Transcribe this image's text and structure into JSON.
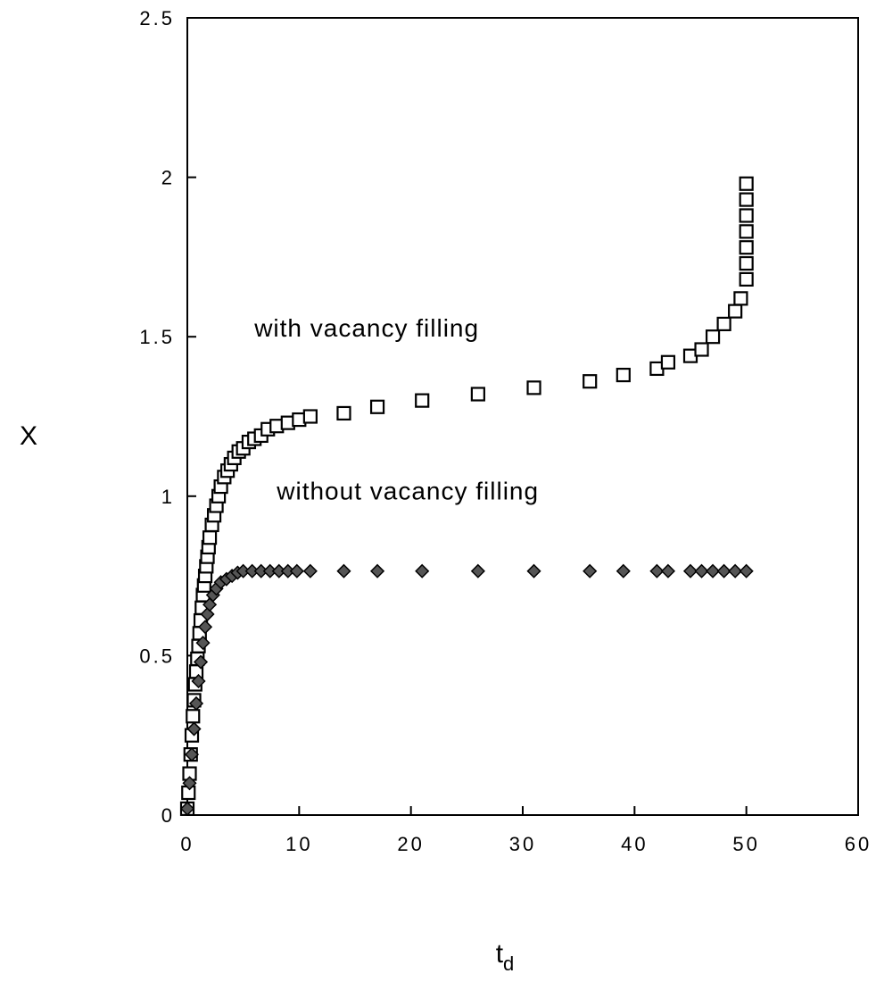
{
  "chart_data": {
    "type": "scatter",
    "xlabel": "t",
    "xlabel_sub": "d",
    "ylabel": "X",
    "xlim": [
      0,
      60
    ],
    "ylim": [
      0,
      2.5
    ],
    "xticks": [
      0,
      10,
      20,
      30,
      40,
      50,
      60
    ],
    "xtick_labels": [
      "0",
      "10",
      "20",
      "30",
      "40",
      "50",
      "60"
    ],
    "yticks": [
      0,
      0.5,
      1,
      1.5,
      2,
      2.5
    ],
    "ytick_labels": [
      "0",
      "0.5",
      "1",
      "1.5",
      "2",
      "2.5"
    ],
    "grid": false,
    "annotations": [
      {
        "text": "with vacancy filling",
        "x": 6,
        "y": 1.5
      },
      {
        "text": "without vacancy filling",
        "x": 8,
        "y": 0.99
      }
    ],
    "series": [
      {
        "marker": "open-square",
        "x": [
          0.0,
          0.1,
          0.2,
          0.3,
          0.4,
          0.5,
          0.6,
          0.7,
          0.8,
          0.9,
          1.0,
          1.1,
          1.2,
          1.3,
          1.4,
          1.5,
          1.6,
          1.7,
          1.8,
          1.9,
          2.0,
          2.2,
          2.4,
          2.6,
          2.8,
          3.0,
          3.3,
          3.6,
          3.9,
          4.2,
          4.6,
          5.0,
          5.5,
          6.0,
          6.6,
          7.2,
          8.0,
          9.0,
          10.0,
          11.0,
          14.0,
          17.0,
          21.0,
          26.0,
          31.0,
          36.0,
          39.0,
          42.0,
          43.0,
          45.0,
          46.0,
          47.0,
          48.0,
          49.0,
          49.5,
          50.0,
          50.0,
          50.0,
          50.0,
          50.0,
          50.0,
          50.0
        ],
        "y": [
          0.02,
          0.07,
          0.13,
          0.19,
          0.25,
          0.31,
          0.36,
          0.41,
          0.45,
          0.49,
          0.53,
          0.57,
          0.61,
          0.65,
          0.69,
          0.72,
          0.75,
          0.78,
          0.81,
          0.84,
          0.87,
          0.91,
          0.94,
          0.97,
          1.0,
          1.03,
          1.06,
          1.08,
          1.1,
          1.12,
          1.14,
          1.15,
          1.17,
          1.18,
          1.19,
          1.21,
          1.22,
          1.23,
          1.24,
          1.25,
          1.26,
          1.28,
          1.3,
          1.32,
          1.34,
          1.36,
          1.38,
          1.4,
          1.42,
          1.44,
          1.46,
          1.5,
          1.54,
          1.58,
          1.62,
          1.68,
          1.73,
          1.78,
          1.83,
          1.88,
          1.93,
          1.98
        ]
      },
      {
        "marker": "filled-diamond",
        "x": [
          0.0,
          0.2,
          0.4,
          0.6,
          0.8,
          1.0,
          1.2,
          1.4,
          1.6,
          1.8,
          2.0,
          2.3,
          2.6,
          3.0,
          3.5,
          4.0,
          4.5,
          5.0,
          5.8,
          6.6,
          7.4,
          8.2,
          9.0,
          9.8,
          11.0,
          14.0,
          17.0,
          21.0,
          26.0,
          31.0,
          36.0,
          39.0,
          42.0,
          43.0,
          45.0,
          46.0,
          47.0,
          48.0,
          49.0,
          50.0
        ],
        "y": [
          0.02,
          0.1,
          0.19,
          0.27,
          0.35,
          0.42,
          0.48,
          0.54,
          0.59,
          0.63,
          0.66,
          0.69,
          0.71,
          0.73,
          0.74,
          0.75,
          0.76,
          0.765,
          0.765,
          0.765,
          0.765,
          0.765,
          0.765,
          0.765,
          0.765,
          0.765,
          0.765,
          0.765,
          0.765,
          0.765,
          0.765,
          0.765,
          0.765,
          0.765,
          0.765,
          0.765,
          0.765,
          0.765,
          0.765,
          0.765
        ]
      }
    ]
  }
}
